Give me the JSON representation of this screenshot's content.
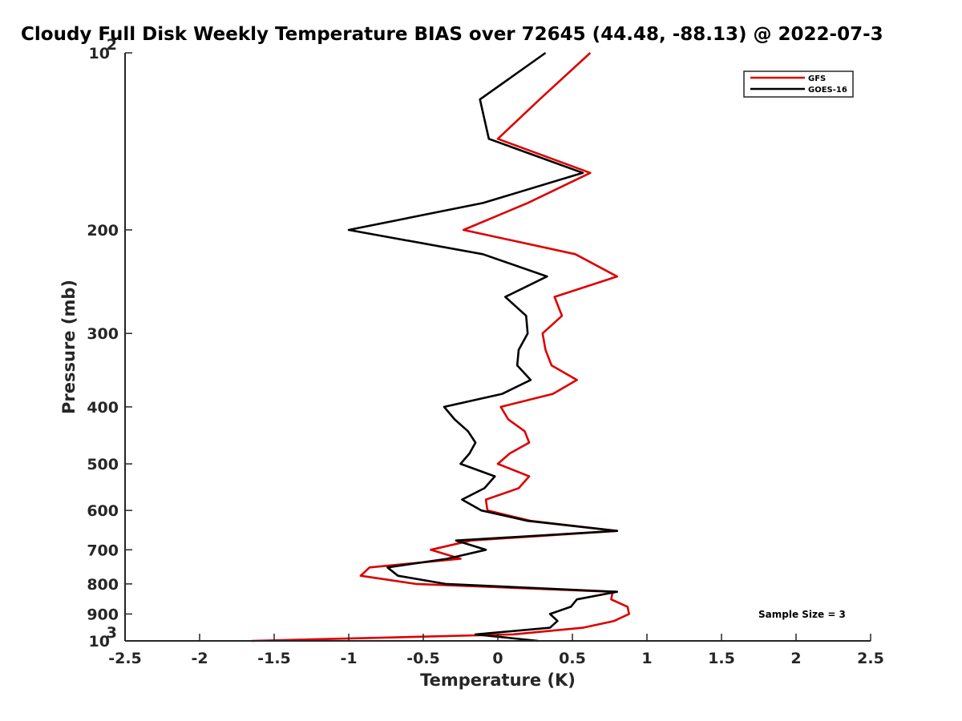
{
  "chart_data": {
    "type": "line",
    "title": "Cloudy Full Disk Weekly Temperature BIAS over 72645 (44.48, -88.13) @ 2022-07-3",
    "xlabel": "Temperature (K)",
    "ylabel": "Pressure (mb)",
    "xlim": [
      -2.5,
      2.5
    ],
    "ylim": [
      100,
      1000
    ],
    "y_scale": "log",
    "y_reversed": true,
    "x_ticks": [
      "-2.5",
      "-2",
      "-1.5",
      "-1",
      "-0.5",
      "0",
      "0.5",
      "1",
      "1.5",
      "2",
      "2.5"
    ],
    "y_ticks": [
      {
        "value": 100,
        "base": "10",
        "exp": "2"
      },
      {
        "value": 200,
        "label": "200"
      },
      {
        "value": 300,
        "label": "300"
      },
      {
        "value": 400,
        "label": "400"
      },
      {
        "value": 500,
        "label": "500"
      },
      {
        "value": 600,
        "label": "600"
      },
      {
        "value": 700,
        "label": "700"
      },
      {
        "value": 800,
        "label": "800"
      },
      {
        "value": 900,
        "label": "900"
      },
      {
        "value": 1000,
        "base": "10",
        "exp": "3"
      }
    ],
    "grid": false,
    "legend_position": "top-right",
    "annotation": "Sample Size = 3",
    "series": [
      {
        "name": "GFS",
        "color": "#dd0000",
        "points": [
          {
            "x": 0.62,
            "p": 100
          },
          {
            "x": 0.28,
            "p": 120
          },
          {
            "x": 0.0,
            "p": 140
          },
          {
            "x": 0.62,
            "p": 160
          },
          {
            "x": 0.2,
            "p": 180
          },
          {
            "x": -0.23,
            "p": 200
          },
          {
            "x": 0.52,
            "p": 220
          },
          {
            "x": 0.8,
            "p": 240
          },
          {
            "x": 0.38,
            "p": 260
          },
          {
            "x": 0.43,
            "p": 280
          },
          {
            "x": 0.3,
            "p": 300
          },
          {
            "x": 0.32,
            "p": 320
          },
          {
            "x": 0.36,
            "p": 340
          },
          {
            "x": 0.53,
            "p": 360
          },
          {
            "x": 0.37,
            "p": 380
          },
          {
            "x": 0.02,
            "p": 400
          },
          {
            "x": 0.07,
            "p": 420
          },
          {
            "x": 0.18,
            "p": 440
          },
          {
            "x": 0.21,
            "p": 460
          },
          {
            "x": 0.08,
            "p": 480
          },
          {
            "x": 0.0,
            "p": 500
          },
          {
            "x": 0.21,
            "p": 525
          },
          {
            "x": 0.14,
            "p": 550
          },
          {
            "x": -0.08,
            "p": 575
          },
          {
            "x": -0.07,
            "p": 600
          },
          {
            "x": 0.22,
            "p": 625
          },
          {
            "x": 0.8,
            "p": 650
          },
          {
            "x": -0.18,
            "p": 675
          },
          {
            "x": -0.45,
            "p": 700
          },
          {
            "x": -0.25,
            "p": 725
          },
          {
            "x": -0.86,
            "p": 750
          },
          {
            "x": -0.92,
            "p": 775
          },
          {
            "x": -0.55,
            "p": 800
          },
          {
            "x": 0.77,
            "p": 825
          },
          {
            "x": 0.76,
            "p": 850
          },
          {
            "x": 0.87,
            "p": 875
          },
          {
            "x": 0.88,
            "p": 900
          },
          {
            "x": 0.78,
            "p": 925
          },
          {
            "x": 0.57,
            "p": 950
          },
          {
            "x": 0.1,
            "p": 975
          },
          {
            "x": -1.65,
            "p": 1000
          }
        ]
      },
      {
        "name": "GOES-16",
        "color": "#000000",
        "points": [
          {
            "x": 0.32,
            "p": 100
          },
          {
            "x": -0.12,
            "p": 120
          },
          {
            "x": -0.06,
            "p": 140
          },
          {
            "x": 0.57,
            "p": 160
          },
          {
            "x": -0.1,
            "p": 180
          },
          {
            "x": -1.0,
            "p": 200
          },
          {
            "x": -0.1,
            "p": 220
          },
          {
            "x": 0.33,
            "p": 240
          },
          {
            "x": 0.05,
            "p": 260
          },
          {
            "x": 0.19,
            "p": 280
          },
          {
            "x": 0.2,
            "p": 300
          },
          {
            "x": 0.14,
            "p": 320
          },
          {
            "x": 0.13,
            "p": 340
          },
          {
            "x": 0.22,
            "p": 360
          },
          {
            "x": 0.03,
            "p": 380
          },
          {
            "x": -0.36,
            "p": 400
          },
          {
            "x": -0.29,
            "p": 420
          },
          {
            "x": -0.2,
            "p": 440
          },
          {
            "x": -0.15,
            "p": 460
          },
          {
            "x": -0.19,
            "p": 480
          },
          {
            "x": -0.25,
            "p": 500
          },
          {
            "x": -0.02,
            "p": 525
          },
          {
            "x": -0.09,
            "p": 550
          },
          {
            "x": -0.24,
            "p": 575
          },
          {
            "x": -0.11,
            "p": 600
          },
          {
            "x": 0.2,
            "p": 625
          },
          {
            "x": 0.8,
            "p": 650
          },
          {
            "x": -0.28,
            "p": 675
          },
          {
            "x": -0.08,
            "p": 700
          },
          {
            "x": -0.34,
            "p": 725
          },
          {
            "x": -0.74,
            "p": 750
          },
          {
            "x": -0.67,
            "p": 775
          },
          {
            "x": -0.35,
            "p": 800
          },
          {
            "x": 0.8,
            "p": 825
          },
          {
            "x": 0.53,
            "p": 850
          },
          {
            "x": 0.49,
            "p": 875
          },
          {
            "x": 0.35,
            "p": 900
          },
          {
            "x": 0.4,
            "p": 925
          },
          {
            "x": 0.35,
            "p": 950
          },
          {
            "x": -0.15,
            "p": 975
          },
          {
            "x": 0.27,
            "p": 1000
          }
        ]
      }
    ]
  }
}
